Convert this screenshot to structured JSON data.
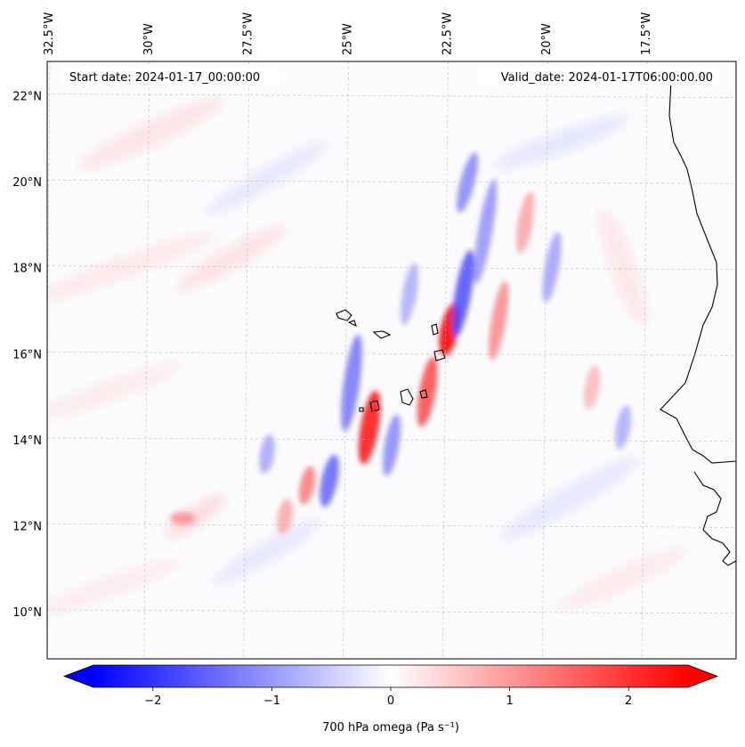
{
  "map": {
    "start_date_label": "Start date: 2024-01-17_00:00:00",
    "valid_date_label": "Valid_date: 2024-01-17T06:00:00.00",
    "lon_labels": [
      "32.5°W",
      "30°W",
      "27.5°W",
      "25°W",
      "22.5°W",
      "20°W",
      "17.5°W"
    ],
    "lat_labels": [
      "22°N",
      "20°N",
      "18°N",
      "16°N",
      "14°N",
      "12°N",
      "10°N"
    ],
    "lon_values": [
      -32.5,
      -30,
      -27.5,
      -25,
      -22.5,
      -20,
      -17.5
    ],
    "lat_values": [
      22,
      20,
      18,
      16,
      14,
      12,
      10
    ],
    "extent": {
      "lon_min": -32.5,
      "lon_max": -15.2,
      "lat_min": 8.9,
      "lat_max": 22.8
    },
    "gridlines": true,
    "colormap": "bwr",
    "colors": {
      "negative": "#0000ff",
      "zero": "#ffffff",
      "positive": "#ff0000",
      "coast": "#000000",
      "grid": "#bbbbbb"
    }
  },
  "colorbar": {
    "label": "700 hPa omega (Pa s⁻¹)",
    "ticks": [
      "−2",
      "−1",
      "0",
      "1",
      "2"
    ],
    "tick_values": [
      -2,
      -1,
      0,
      1,
      2
    ],
    "range": [
      -2.5,
      2.5
    ],
    "extend": "both",
    "orientation": "horizontal",
    "placement": "bottom"
  }
}
